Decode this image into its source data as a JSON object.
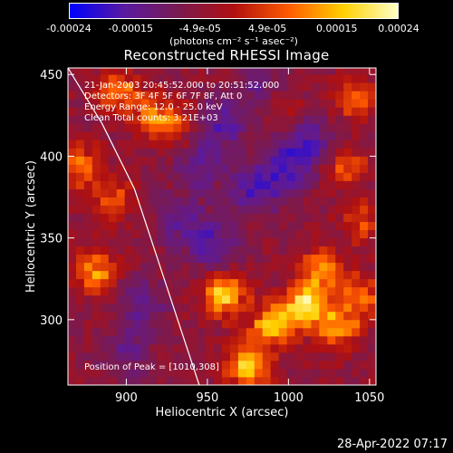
{
  "chart_data": {
    "type": "heatmap",
    "title": "Reconstructed RHESSI Image",
    "xlabel": "Heliocentric X (arcsec)",
    "ylabel": "Heliocentric Y (arcsec)",
    "xlim": [
      864,
      1054
    ],
    "ylim": [
      260,
      454
    ],
    "x_ticks": [
      900,
      950,
      1000,
      1050
    ],
    "y_ticks": [
      300,
      350,
      400,
      450
    ],
    "colorbar": {
      "ticks": [
        -0.00024,
        -0.00015,
        -4.9e-05,
        4.9e-05,
        0.00015,
        0.00024
      ],
      "tick_labels": [
        "-0.00024",
        "-0.00015",
        "-4.9e-05",
        "4.9e-05",
        "0.00015",
        "0.00024"
      ],
      "range": [
        -0.00024,
        0.00024
      ],
      "units": "(photons cm⁻² s⁻¹ asec⁻²)",
      "colors": [
        "#0000ff",
        "#5a1aa0",
        "#7a1a50",
        "#b01010",
        "#ff5a00",
        "#ffd000",
        "#ffffc8"
      ]
    },
    "annotations": {
      "time_range": "21-Jan-2003 20:45:52.000 to 20:51:52.000",
      "detectors": "Detectors: 3F 4F 5F 6F 7F 8F, Att 0",
      "energy_range": "Energy Range: 12.0 - 25.0 keV",
      "clean": "Clean    Total counts: 3.21E+03",
      "peak": "Position of Peak = [1010,308]"
    },
    "peak_position": [
      1010,
      308
    ],
    "limb_curve": {
      "x": [
        864,
        885,
        905,
        925,
        945
      ],
      "y": [
        454,
        420,
        380,
        320,
        260
      ]
    },
    "bright_regions": [
      {
        "x": 1010,
        "y": 308,
        "intensity": 0.00024
      },
      {
        "x": 960,
        "y": 315,
        "intensity": 0.00022
      },
      {
        "x": 990,
        "y": 298,
        "intensity": 0.0002
      },
      {
        "x": 1030,
        "y": 295,
        "intensity": 0.00019
      },
      {
        "x": 1020,
        "y": 330,
        "intensity": 0.00016
      },
      {
        "x": 975,
        "y": 275,
        "intensity": 0.00015
      },
      {
        "x": 1045,
        "y": 315,
        "intensity": 0.00015
      },
      {
        "x": 880,
        "y": 330,
        "intensity": 0.00016
      },
      {
        "x": 872,
        "y": 395,
        "intensity": 0.00013
      },
      {
        "x": 890,
        "y": 375,
        "intensity": 0.00012
      },
      {
        "x": 895,
        "y": 440,
        "intensity": 0.00014
      },
      {
        "x": 915,
        "y": 425,
        "intensity": 0.00012
      },
      {
        "x": 930,
        "y": 420,
        "intensity": 0.0001
      },
      {
        "x": 1042,
        "y": 435,
        "intensity": 0.00013
      },
      {
        "x": 1035,
        "y": 395,
        "intensity": 0.00011
      },
      {
        "x": 1045,
        "y": 360,
        "intensity": 0.0001
      },
      {
        "x": 995,
        "y": 430,
        "intensity": 8e-05
      },
      {
        "x": 975,
        "y": 265,
        "intensity": 9e-05
      }
    ],
    "dark_regions": [
      {
        "x": 960,
        "y": 420,
        "intensity": -0.0001
      },
      {
        "x": 980,
        "y": 380,
        "intensity": -0.00012
      },
      {
        "x": 1000,
        "y": 395,
        "intensity": -0.00011
      },
      {
        "x": 935,
        "y": 360,
        "intensity": -9e-05
      },
      {
        "x": 955,
        "y": 345,
        "intensity": -0.0001
      },
      {
        "x": 1015,
        "y": 410,
        "intensity": -9e-05
      },
      {
        "x": 910,
        "y": 310,
        "intensity": -8e-05
      },
      {
        "x": 900,
        "y": 280,
        "intensity": -7e-05
      },
      {
        "x": 945,
        "y": 395,
        "intensity": -9e-05
      },
      {
        "x": 985,
        "y": 440,
        "intensity": -8e-05
      }
    ]
  },
  "timestamp": "28-Apr-2022 07:17"
}
